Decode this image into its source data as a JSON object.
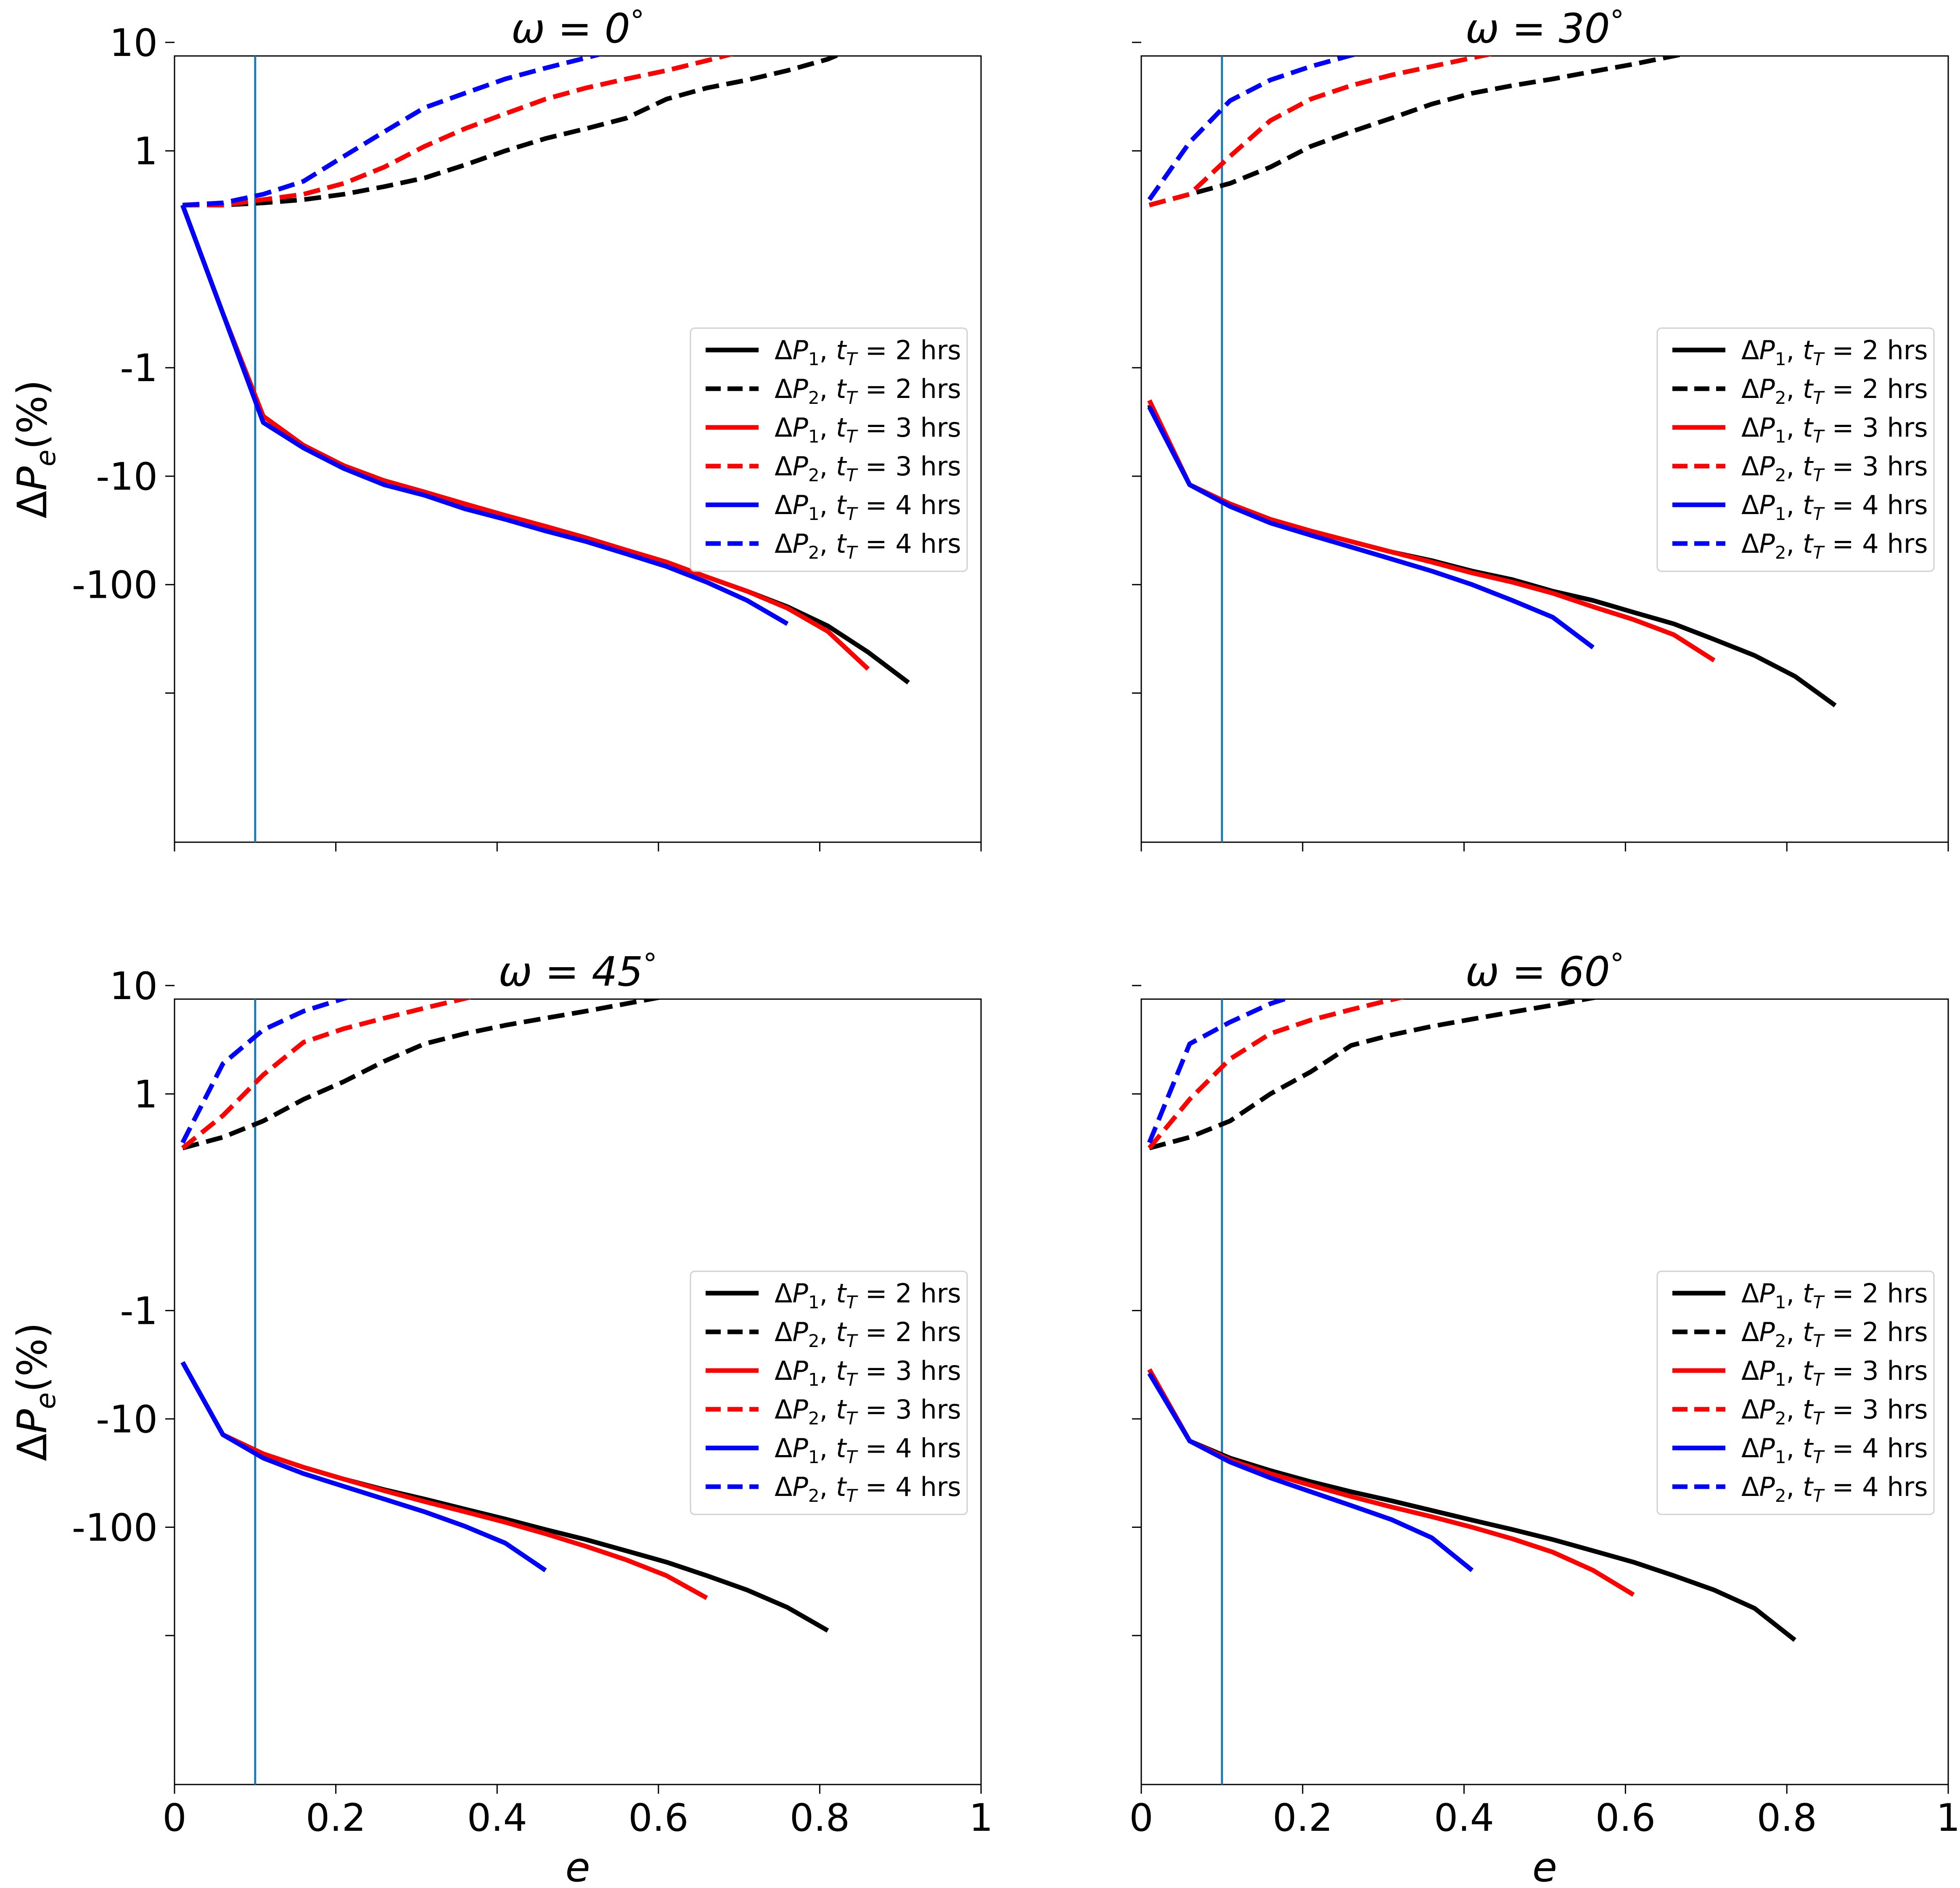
{
  "figure": {
    "background": "#ffffff"
  },
  "styles": {
    "colors": {
      "black": "#000000",
      "red": "#ff0000",
      "blue": "#0000ff",
      "vline": "#1f77b4"
    }
  },
  "common": {
    "xlabel": "e",
    "ylabel": "ΔPe(%)",
    "xlim": [
      0,
      1
    ],
    "x_tick_labels": [
      "0",
      "0.2",
      "0.4",
      "0.6",
      "0.8",
      "1"
    ],
    "y_tick_labels": [
      "10",
      "1",
      "-1",
      "-10",
      "-100"
    ],
    "y_scale": "symmetric log (linear threshold 1)",
    "vertical_line_x": 0.1,
    "legend_position": "center-right",
    "legend": [
      "ΔP1, tT = 2 hrs",
      "ΔP2, tT = 2 hrs",
      "ΔP1, tT = 3 hrs",
      "ΔP2, tT = 3 hrs",
      "ΔP1, tT = 4 hrs",
      "ΔP2, tT = 4 hrs"
    ]
  },
  "chart_data": [
    {
      "type": "line",
      "title": "ω = 0°",
      "xlabel": "e",
      "ylabel": "ΔPe(%)",
      "xlim": [
        0,
        1
      ],
      "yscale": "symlog",
      "grid": false,
      "legend_position": "center-right",
      "show_x_tick_labels": false,
      "show_y_tick_labels": true,
      "series": [
        {
          "name": "ΔP1, tT = 2 hrs",
          "color": "black",
          "dashed": false,
          "x": [
            0.01,
            0.06,
            0.11,
            0.16,
            0.21,
            0.26,
            0.31,
            0.36,
            0.41,
            0.46,
            0.51,
            0.56,
            0.61,
            0.66,
            0.71,
            0.76,
            0.81,
            0.86,
            0.91
          ],
          "y": [
            0.5,
            -0.5,
            -2.8,
            -5.2,
            -8,
            -11,
            -14,
            -18,
            -23,
            -29,
            -37,
            -48,
            -62,
            -85,
            -115,
            -160,
            -240,
            -420,
            -800
          ]
        },
        {
          "name": "ΔP2, tT = 2 hrs",
          "color": "black",
          "dashed": true,
          "x": [
            0.01,
            0.06,
            0.11,
            0.16,
            0.21,
            0.26,
            0.31,
            0.36,
            0.41,
            0.46,
            0.51,
            0.56,
            0.61,
            0.66,
            0.71,
            0.76,
            0.81,
            0.86,
            0.91
          ],
          "y": [
            0.5,
            0.5,
            0.52,
            0.55,
            0.6,
            0.67,
            0.75,
            0.87,
            1.0,
            1.3,
            1.6,
            2,
            3,
            3.8,
            4.5,
            5.5,
            7,
            10,
            16
          ]
        },
        {
          "name": "ΔP1, tT = 3 hrs",
          "color": "red",
          "dashed": false,
          "x": [
            0.01,
            0.06,
            0.11,
            0.16,
            0.21,
            0.26,
            0.31,
            0.36,
            0.41,
            0.46,
            0.51,
            0.56,
            0.61,
            0.66,
            0.71,
            0.76,
            0.81,
            0.86
          ],
          "y": [
            0.5,
            -0.5,
            -2.8,
            -5.2,
            -8,
            -11,
            -14,
            -18,
            -23,
            -29,
            -37,
            -48,
            -62,
            -85,
            -115,
            -165,
            -270,
            -600
          ]
        },
        {
          "name": "ΔP2, tT = 3 hrs",
          "color": "red",
          "dashed": true,
          "x": [
            0.01,
            0.06,
            0.11,
            0.16,
            0.21,
            0.26,
            0.31,
            0.36,
            0.41,
            0.46,
            0.51,
            0.56,
            0.61,
            0.66,
            0.71,
            0.76,
            0.81,
            0.86
          ],
          "y": [
            0.5,
            0.5,
            0.55,
            0.6,
            0.7,
            0.85,
            1.1,
            1.6,
            2.2,
            3,
            3.8,
            4.6,
            5.5,
            6.8,
            8.5,
            11,
            16,
            27
          ]
        },
        {
          "name": "ΔP1, tT = 4 hrs",
          "color": "blue",
          "dashed": false,
          "x": [
            0.01,
            0.06,
            0.11,
            0.16,
            0.21,
            0.26,
            0.31,
            0.36,
            0.41,
            0.46,
            0.51,
            0.56,
            0.61,
            0.66,
            0.71,
            0.76
          ],
          "y": [
            0.5,
            -0.5,
            -3.2,
            -5.5,
            -8.5,
            -12,
            -15,
            -20,
            -25,
            -32,
            -40,
            -52,
            -68,
            -95,
            -140,
            -230
          ]
        },
        {
          "name": "ΔP2, tT = 4 hrs",
          "color": "blue",
          "dashed": true,
          "x": [
            0.01,
            0.06,
            0.11,
            0.16,
            0.21,
            0.26,
            0.31,
            0.36,
            0.41,
            0.46,
            0.51,
            0.56,
            0.61,
            0.66,
            0.71,
            0.76
          ],
          "y": [
            0.5,
            0.52,
            0.6,
            0.72,
            0.95,
            1.5,
            2.5,
            3.4,
            4.6,
            5.8,
            7.2,
            9,
            11,
            14,
            19,
            32
          ]
        }
      ]
    },
    {
      "type": "line",
      "title": "ω = 30°",
      "xlabel": "e",
      "ylabel": "ΔPe(%)",
      "xlim": [
        0,
        1
      ],
      "yscale": "symlog",
      "grid": false,
      "legend_position": "center-right",
      "show_x_tick_labels": false,
      "show_y_tick_labels": false,
      "series": [
        {
          "name": "ΔP1, tT = 2 hrs",
          "color": "black",
          "dashed": false,
          "x": [
            0.01,
            0.06,
            0.11,
            0.16,
            0.21,
            0.26,
            0.31,
            0.36,
            0.41,
            0.46,
            0.51,
            0.56,
            0.61,
            0.66,
            0.71,
            0.76,
            0.81,
            0.86
          ],
          "y": [
            -2.2,
            -12,
            -18,
            -25,
            -32,
            -40,
            -50,
            -60,
            -75,
            -90,
            -115,
            -140,
            -180,
            -230,
            -320,
            -450,
            -700,
            -1300
          ]
        },
        {
          "name": "ΔP2, tT = 2 hrs",
          "color": "black",
          "dashed": true,
          "x": [
            0.01,
            0.06,
            0.11,
            0.16,
            0.21,
            0.26,
            0.31,
            0.36,
            0.41,
            0.46,
            0.51,
            0.56,
            0.61,
            0.66,
            0.71,
            0.76,
            0.81,
            0.86
          ],
          "y": [
            0.5,
            0.6,
            0.7,
            0.85,
            1.1,
            1.5,
            2.0,
            2.7,
            3.4,
            4.0,
            4.6,
            5.4,
            6.3,
            7.5,
            9,
            11.5,
            15.5,
            23
          ]
        },
        {
          "name": "ΔP1, tT = 3 hrs",
          "color": "red",
          "dashed": false,
          "x": [
            0.01,
            0.06,
            0.11,
            0.16,
            0.21,
            0.26,
            0.31,
            0.36,
            0.41,
            0.46,
            0.51,
            0.56,
            0.61,
            0.66,
            0.71
          ],
          "y": [
            -2.0,
            -12,
            -18,
            -25,
            -32,
            -40,
            -50,
            -62,
            -78,
            -95,
            -120,
            -160,
            -210,
            -290,
            -500
          ]
        },
        {
          "name": "ΔP2, tT = 3 hrs",
          "color": "red",
          "dashed": true,
          "x": [
            0.01,
            0.06,
            0.11,
            0.16,
            0.21,
            0.26,
            0.31,
            0.36,
            0.41,
            0.46,
            0.51,
            0.56,
            0.61,
            0.66,
            0.71
          ],
          "y": [
            0.5,
            0.6,
            0.95,
            1.9,
            3.0,
            4.0,
            5.0,
            6.0,
            7.2,
            8.6,
            10.2,
            12.4,
            15.5,
            19.5,
            25
          ]
        },
        {
          "name": "ΔP1, tT = 4 hrs",
          "color": "blue",
          "dashed": false,
          "x": [
            0.01,
            0.06,
            0.11,
            0.16,
            0.21,
            0.26,
            0.31,
            0.36,
            0.41,
            0.46,
            0.51,
            0.56
          ],
          "y": [
            -2.3,
            -12,
            -19,
            -27,
            -35,
            -45,
            -58,
            -75,
            -100,
            -140,
            -200,
            -380
          ]
        },
        {
          "name": "ΔP2, tT = 4 hrs",
          "color": "blue",
          "dashed": true,
          "x": [
            0.01,
            0.06,
            0.11,
            0.16,
            0.21,
            0.26,
            0.31,
            0.36,
            0.41,
            0.46,
            0.51,
            0.56
          ],
          "y": [
            0.55,
            1.2,
            2.9,
            4.5,
            6.0,
            7.6,
            9.3,
            11.2,
            13.6,
            16.6,
            21,
            33
          ]
        }
      ]
    },
    {
      "type": "line",
      "title": "ω = 45°",
      "xlabel": "e",
      "ylabel": "ΔPe(%)",
      "xlim": [
        0,
        1
      ],
      "yscale": "symlog",
      "grid": false,
      "legend_position": "center-right",
      "show_x_tick_labels": true,
      "show_y_tick_labels": true,
      "series": [
        {
          "name": "ΔP1, tT = 2 hrs",
          "color": "black",
          "dashed": false,
          "x": [
            0.01,
            0.06,
            0.11,
            0.16,
            0.21,
            0.26,
            0.31,
            0.36,
            0.41,
            0.46,
            0.51,
            0.56,
            0.61,
            0.66,
            0.71,
            0.76,
            0.81
          ],
          "y": [
            -3,
            -14,
            -21,
            -28,
            -36,
            -45,
            -55,
            -68,
            -84,
            -105,
            -130,
            -165,
            -210,
            -280,
            -380,
            -550,
            -900
          ]
        },
        {
          "name": "ΔP2, tT = 2 hrs",
          "color": "black",
          "dashed": true,
          "x": [
            0.01,
            0.06,
            0.11,
            0.16,
            0.21,
            0.26,
            0.31,
            0.36,
            0.41,
            0.46,
            0.51,
            0.56,
            0.61,
            0.66,
            0.71,
            0.76,
            0.81
          ],
          "y": [
            0.5,
            0.6,
            0.75,
            0.95,
            1.3,
            2.0,
            2.9,
            3.6,
            4.3,
            5.0,
            5.8,
            6.8,
            8.0,
            9.8,
            12.2,
            15.5,
            22
          ]
        },
        {
          "name": "ΔP1, tT = 3 hrs",
          "color": "red",
          "dashed": false,
          "x": [
            0.01,
            0.06,
            0.11,
            0.16,
            0.21,
            0.26,
            0.31,
            0.36,
            0.41,
            0.46,
            0.51,
            0.56,
            0.61,
            0.66
          ],
          "y": [
            -3,
            -14,
            -21,
            -28,
            -36,
            -46,
            -58,
            -72,
            -90,
            -115,
            -150,
            -200,
            -280,
            -450
          ]
        },
        {
          "name": "ΔP2, tT = 3 hrs",
          "color": "red",
          "dashed": true,
          "x": [
            0.01,
            0.06,
            0.11,
            0.16,
            0.21,
            0.26,
            0.31,
            0.36,
            0.41,
            0.46,
            0.51,
            0.56,
            0.61,
            0.66
          ],
          "y": [
            0.5,
            0.8,
            1.5,
            3.0,
            4.0,
            5.0,
            6.2,
            7.6,
            9.2,
            11.2,
            13.8,
            17,
            21,
            27
          ]
        },
        {
          "name": "ΔP1, tT = 4 hrs",
          "color": "blue",
          "dashed": false,
          "x": [
            0.01,
            0.06,
            0.11,
            0.16,
            0.21,
            0.26,
            0.31,
            0.36,
            0.41,
            0.46
          ],
          "y": [
            -3,
            -14,
            -23,
            -32,
            -42,
            -55,
            -72,
            -98,
            -140,
            -250
          ]
        },
        {
          "name": "ΔP2, tT = 4 hrs",
          "color": "blue",
          "dashed": true,
          "x": [
            0.01,
            0.06,
            0.11,
            0.16,
            0.21,
            0.26,
            0.31,
            0.36,
            0.41,
            0.46
          ],
          "y": [
            0.55,
            1.9,
            3.9,
            5.8,
            7.6,
            9.6,
            12.2,
            15.4,
            19.5,
            26
          ]
        }
      ]
    },
    {
      "type": "line",
      "title": "ω = 60°",
      "xlabel": "e",
      "ylabel": "ΔPe(%)",
      "xlim": [
        0,
        1
      ],
      "yscale": "symlog",
      "grid": false,
      "legend_position": "center-right",
      "show_x_tick_labels": true,
      "show_y_tick_labels": false,
      "series": [
        {
          "name": "ΔP1, tT = 2 hrs",
          "color": "black",
          "dashed": false,
          "x": [
            0.01,
            0.06,
            0.11,
            0.16,
            0.21,
            0.26,
            0.31,
            0.36,
            0.41,
            0.46,
            0.51,
            0.56,
            0.61,
            0.66,
            0.71,
            0.76,
            0.81
          ],
          "y": [
            -3.5,
            -16,
            -23,
            -30,
            -38,
            -47,
            -57,
            -70,
            -86,
            -105,
            -130,
            -165,
            -210,
            -280,
            -380,
            -560,
            -1100
          ]
        },
        {
          "name": "ΔP2, tT = 2 hrs",
          "color": "black",
          "dashed": true,
          "x": [
            0.01,
            0.06,
            0.11,
            0.16,
            0.21,
            0.26,
            0.31,
            0.36,
            0.41,
            0.46,
            0.51,
            0.56,
            0.61,
            0.66,
            0.71,
            0.76,
            0.81
          ],
          "y": [
            0.5,
            0.6,
            0.75,
            1.0,
            1.6,
            2.8,
            3.5,
            4.2,
            4.9,
            5.7,
            6.6,
            7.7,
            9.1,
            11.0,
            14.0,
            18.5,
            27
          ]
        },
        {
          "name": "ΔP1, tT = 3 hrs",
          "color": "red",
          "dashed": false,
          "x": [
            0.01,
            0.06,
            0.11,
            0.16,
            0.21,
            0.26,
            0.31,
            0.36,
            0.41,
            0.46,
            0.51,
            0.56,
            0.61
          ],
          "y": [
            -3.5,
            -16,
            -24,
            -32,
            -41,
            -52,
            -65,
            -80,
            -100,
            -128,
            -170,
            -250,
            -420
          ]
        },
        {
          "name": "ΔP2, tT = 3 hrs",
          "color": "red",
          "dashed": true,
          "x": [
            0.01,
            0.06,
            0.11,
            0.16,
            0.21,
            0.26,
            0.31,
            0.36,
            0.41,
            0.46,
            0.51,
            0.56,
            0.61
          ],
          "y": [
            0.5,
            0.95,
            2.1,
            3.6,
            4.8,
            6.0,
            7.4,
            9.0,
            10.8,
            13.0,
            15.8,
            19.5,
            25
          ]
        },
        {
          "name": "ΔP1, tT = 4 hrs",
          "color": "blue",
          "dashed": false,
          "x": [
            0.01,
            0.06,
            0.11,
            0.16,
            0.21,
            0.26,
            0.31,
            0.36,
            0.41
          ],
          "y": [
            -3.8,
            -16,
            -25,
            -35,
            -47,
            -63,
            -85,
            -125,
            -250
          ]
        },
        {
          "name": "ΔP2, tT = 4 hrs",
          "color": "blue",
          "dashed": true,
          "x": [
            0.01,
            0.06,
            0.11,
            0.16,
            0.21,
            0.26,
            0.31,
            0.36,
            0.41
          ],
          "y": [
            0.55,
            2.9,
            4.6,
            6.8,
            9.0,
            11.5,
            14.5,
            18.5,
            24
          ]
        }
      ]
    }
  ]
}
